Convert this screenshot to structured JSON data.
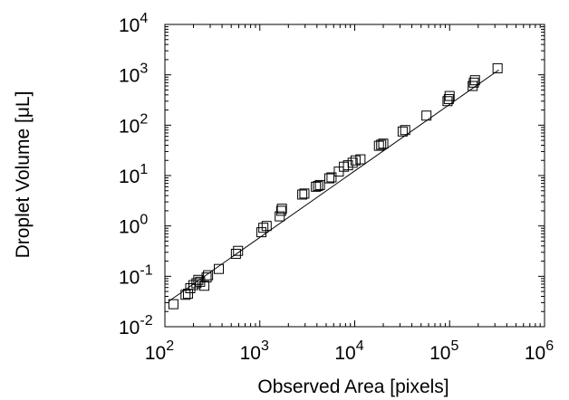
{
  "chart_data": {
    "type": "scatter",
    "title": "",
    "xlabel": "Observed Area [pixels]",
    "ylabel": "Droplet Volume [μL]",
    "xscale": "log",
    "yscale": "log",
    "xlim": [
      100,
      1000000
    ],
    "ylim": [
      0.01,
      10000
    ],
    "grid": false,
    "legend": "none",
    "x_tick_labels": [
      {
        "base": "10",
        "exp": "2"
      },
      {
        "base": "10",
        "exp": "3"
      },
      {
        "base": "10",
        "exp": "4"
      },
      {
        "base": "10",
        "exp": "5"
      },
      {
        "base": "10",
        "exp": "6"
      }
    ],
    "y_tick_labels": [
      {
        "base": "10",
        "exp": "-2"
      },
      {
        "base": "10",
        "exp": "-1"
      },
      {
        "base": "10",
        "exp": "0"
      },
      {
        "base": "10",
        "exp": "1"
      },
      {
        "base": "10",
        "exp": "2"
      },
      {
        "base": "10",
        "exp": "3"
      },
      {
        "base": "10",
        "exp": "4"
      }
    ],
    "series": [
      {
        "marker": "square",
        "color": "#000000",
        "points": [
          [
            123,
            0.028
          ],
          [
            165,
            0.043
          ],
          [
            175,
            0.045
          ],
          [
            185,
            0.058
          ],
          [
            200,
            0.067
          ],
          [
            215,
            0.073
          ],
          [
            225,
            0.085
          ],
          [
            235,
            0.078
          ],
          [
            260,
            0.065
          ],
          [
            275,
            0.095
          ],
          [
            285,
            0.105
          ],
          [
            370,
            0.14
          ],
          [
            560,
            0.28
          ],
          [
            590,
            0.32
          ],
          [
            1040,
            0.75
          ],
          [
            1090,
            0.92
          ],
          [
            1180,
            1.0
          ],
          [
            1620,
            1.55
          ],
          [
            1680,
            2.0
          ],
          [
            1710,
            2.2
          ],
          [
            2800,
            4.2
          ],
          [
            2950,
            4.4
          ],
          [
            3900,
            6.0
          ],
          [
            4100,
            6.2
          ],
          [
            4300,
            6.5
          ],
          [
            5400,
            8.8
          ],
          [
            5700,
            9.2
          ],
          [
            6800,
            12
          ],
          [
            7700,
            15
          ],
          [
            8500,
            16
          ],
          [
            9500,
            18
          ],
          [
            10200,
            20
          ],
          [
            11500,
            21
          ],
          [
            18000,
            39
          ],
          [
            19000,
            41
          ],
          [
            20000,
            43
          ],
          [
            32000,
            75
          ],
          [
            34000,
            80
          ],
          [
            57000,
            155
          ],
          [
            95000,
            300
          ],
          [
            98000,
            330
          ],
          [
            100000,
            380
          ],
          [
            175000,
            600
          ],
          [
            180000,
            700
          ],
          [
            185000,
            780
          ],
          [
            320000,
            1350
          ]
        ]
      },
      {
        "type": "line",
        "marker": "none",
        "color": "#000000",
        "points": [
          [
            110,
            0.032
          ],
          [
            330000,
            1250
          ]
        ]
      }
    ]
  }
}
